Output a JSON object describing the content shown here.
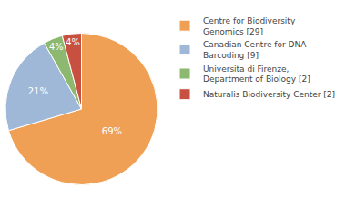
{
  "chart_data": {
    "type": "pie",
    "categories": [
      "Centre for Biodiversity\nGenomics [29]",
      "Canadian Centre for DNA\nBarcoding [9]",
      "Universita di Firenze,\nDepartment of Biology [2]",
      "Naturalis Biodiversity Center [2]"
    ],
    "values": [
      69,
      21,
      4,
      4
    ],
    "value_labels": [
      "69%",
      "21%",
      "4%",
      "4%"
    ],
    "colors": [
      "#f0a054",
      "#a0b8d8",
      "#8db870",
      "#c85040"
    ],
    "data_labels": true,
    "legend": "right"
  }
}
